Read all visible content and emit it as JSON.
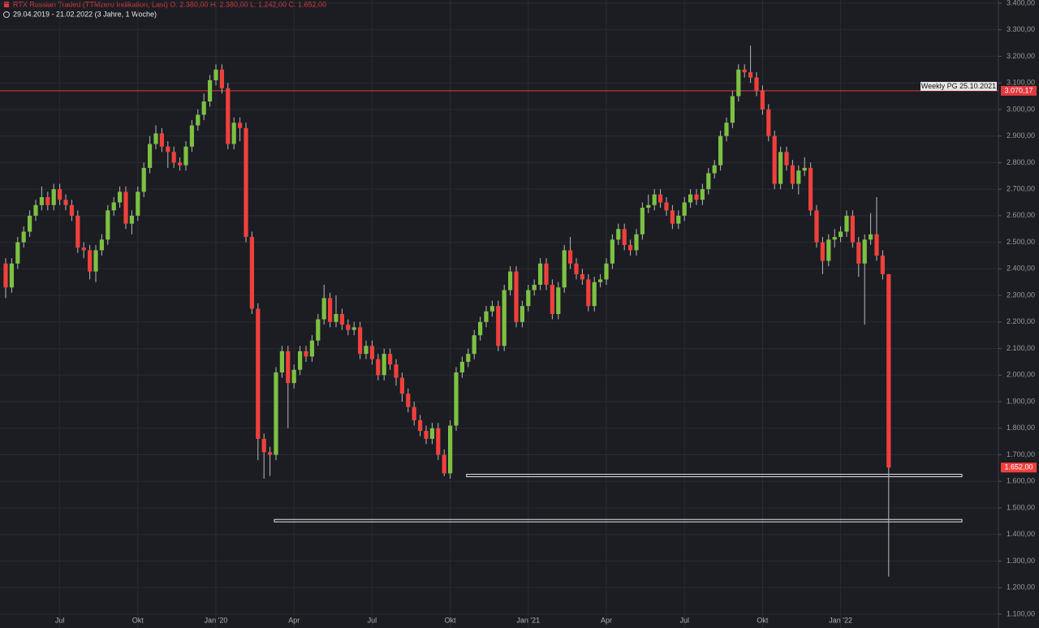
{
  "chart_data": {
    "type": "candlestick",
    "title": "RTX Russian Traded (TTMzero Indikation, Last)  O: 2.380,00  H: 2.380,00  L: 1.242,00  C: 1.652,00",
    "subtitle": "29.04.2019 - 21.02.2022  (3 Jahre, 1 Woche)",
    "categories": [
      null,
      null,
      null,
      null,
      null,
      null,
      null,
      null,
      null,
      "Jul",
      null,
      null,
      null,
      null,
      null,
      null,
      null,
      null,
      null,
      null,
      null,
      null,
      "Okt",
      null,
      null,
      null,
      null,
      null,
      null,
      null,
      null,
      null,
      null,
      null,
      null,
      "Jan '20",
      null,
      null,
      null,
      null,
      null,
      null,
      null,
      null,
      null,
      null,
      null,
      null,
      "Apr",
      null,
      null,
      null,
      null,
      null,
      null,
      null,
      null,
      null,
      null,
      null,
      null,
      "Jul",
      null,
      null,
      null,
      null,
      null,
      null,
      null,
      null,
      null,
      null,
      null,
      null,
      "Okt",
      null,
      null,
      null,
      null,
      null,
      null,
      null,
      null,
      null,
      null,
      null,
      null,
      "Jan '21",
      null,
      null,
      null,
      null,
      null,
      null,
      null,
      null,
      null,
      null,
      null,
      null,
      "Apr",
      null,
      null,
      null,
      null,
      null,
      null,
      null,
      null,
      null,
      null,
      null,
      null,
      "Jul",
      null,
      null,
      null,
      null,
      null,
      null,
      null,
      null,
      null,
      null,
      null,
      null,
      "Okt",
      null,
      null,
      null,
      null,
      null,
      null,
      null,
      null,
      null,
      null,
      null,
      null,
      "Jan '22",
      null,
      null,
      null,
      null,
      null,
      null,
      null,
      null
    ],
    "open": [
      2420,
      2330,
      2420,
      2500,
      2540,
      2600,
      2640,
      2670,
      2640,
      2700,
      2660,
      2640,
      2600,
      2480,
      2470,
      2390,
      2470,
      2510,
      2620,
      2650,
      2690,
      2570,
      2600,
      2690,
      2780,
      2870,
      2910,
      2860,
      2840,
      2800,
      2790,
      2860,
      2940,
      2980,
      3030,
      3110,
      3150,
      3080,
      2870,
      2950,
      2930,
      2520,
      2250,
      1760,
      1710,
      1700,
      2010,
      2090,
      1970,
      2020,
      2090,
      2070,
      2130,
      2210,
      2290,
      2200,
      2230,
      2190,
      2170,
      2180,
      2080,
      2110,
      2060,
      2000,
      2080,
      2040,
      1990,
      1930,
      1880,
      1830,
      1790,
      1760,
      1800,
      1700,
      1630,
      1810,
      2010,
      2050,
      2080,
      2150,
      2200,
      2240,
      2260,
      2110,
      2320,
      2390,
      2200,
      2260,
      2320,
      2340,
      2420,
      2340,
      2230,
      2330,
      2470,
      2420,
      2380,
      2360,
      2260,
      2350,
      2360,
      2420,
      2510,
      2550,
      2490,
      2470,
      2530,
      2630,
      2640,
      2680,
      2650,
      2620,
      2570,
      2600,
      2650,
      2680,
      2660,
      2700,
      2760,
      2790,
      2900,
      2950,
      3050,
      3150,
      3140,
      3120,
      3070,
      3000,
      2900,
      2720,
      2840,
      2790,
      2720,
      2770,
      2780,
      2620,
      2500,
      2430,
      2510,
      2520,
      2540,
      2600,
      2500,
      2420,
      2510,
      2530,
      2450,
      2380
    ],
    "high": [
      2440,
      2440,
      2520,
      2560,
      2620,
      2660,
      2710,
      2690,
      2720,
      2720,
      2680,
      2660,
      2620,
      2500,
      2490,
      2490,
      2530,
      2640,
      2670,
      2710,
      2710,
      2620,
      2710,
      2800,
      2900,
      2940,
      2930,
      2880,
      2860,
      2820,
      2880,
      2960,
      3000,
      3060,
      3130,
      3170,
      3170,
      3100,
      2970,
      2970,
      2950,
      2540,
      2270,
      1780,
      1730,
      2030,
      2110,
      2110,
      2040,
      2110,
      2110,
      2150,
      2230,
      2340,
      2310,
      2300,
      2250,
      2210,
      2200,
      2200,
      2130,
      2130,
      2080,
      2100,
      2100,
      2060,
      2010,
      1950,
      1900,
      1850,
      1810,
      1820,
      1820,
      1720,
      1830,
      2030,
      2070,
      2100,
      2170,
      2220,
      2260,
      2280,
      2280,
      2340,
      2410,
      2410,
      2280,
      2340,
      2360,
      2440,
      2440,
      2360,
      2350,
      2490,
      2520,
      2440,
      2400,
      2380,
      2370,
      2380,
      2440,
      2530,
      2570,
      2570,
      2510,
      2550,
      2650,
      2680,
      2700,
      2700,
      2670,
      2640,
      2620,
      2670,
      2700,
      2700,
      2720,
      2780,
      2810,
      2920,
      2970,
      3070,
      3170,
      3170,
      3240,
      3140,
      3090,
      3020,
      2920,
      2860,
      2860,
      2810,
      2790,
      2820,
      2800,
      2640,
      2520,
      2530,
      2550,
      2560,
      2620,
      2620,
      2520,
      2530,
      2610,
      2670,
      2470,
      2380
    ],
    "low": [
      2290,
      2310,
      2400,
      2480,
      2520,
      2580,
      2620,
      2620,
      2620,
      2640,
      2620,
      2580,
      2460,
      2440,
      2360,
      2350,
      2450,
      2490,
      2600,
      2630,
      2550,
      2530,
      2580,
      2670,
      2760,
      2850,
      2840,
      2780,
      2780,
      2770,
      2770,
      2840,
      2920,
      2960,
      3010,
      3090,
      3060,
      2850,
      2850,
      2880,
      2500,
      2230,
      1680,
      1610,
      1620,
      1680,
      1990,
      1800,
      1950,
      2000,
      2050,
      2050,
      2110,
      2190,
      2180,
      2180,
      2170,
      2150,
      2150,
      2060,
      2060,
      2040,
      1980,
      1980,
      2020,
      1960,
      1900,
      1860,
      1810,
      1770,
      1740,
      1740,
      1680,
      1620,
      1610,
      1790,
      1990,
      2030,
      2060,
      2130,
      2180,
      2220,
      2090,
      2090,
      2300,
      2180,
      2180,
      2240,
      2300,
      2320,
      2320,
      2210,
      2210,
      2310,
      2400,
      2360,
      2340,
      2240,
      2240,
      2330,
      2340,
      2400,
      2490,
      2470,
      2450,
      2450,
      2510,
      2610,
      2620,
      2630,
      2600,
      2550,
      2550,
      2580,
      2630,
      2640,
      2640,
      2680,
      2740,
      2770,
      2880,
      2930,
      3030,
      3120,
      3100,
      3050,
      2980,
      2880,
      2700,
      2700,
      2770,
      2700,
      2680,
      2750,
      2600,
      2480,
      2380,
      2410,
      2480,
      2500,
      2520,
      2480,
      2370,
      2190,
      2490,
      2430,
      2360,
      1242
    ],
    "close": [
      2330,
      2420,
      2500,
      2540,
      2600,
      2640,
      2670,
      2640,
      2700,
      2660,
      2640,
      2600,
      2480,
      2470,
      2390,
      2470,
      2510,
      2620,
      2650,
      2690,
      2570,
      2600,
      2690,
      2780,
      2870,
      2910,
      2860,
      2840,
      2800,
      2790,
      2860,
      2940,
      2980,
      3030,
      3110,
      3150,
      3080,
      2870,
      2950,
      2930,
      2520,
      2250,
      1760,
      1710,
      1700,
      2010,
      2090,
      1970,
      2020,
      2090,
      2070,
      2130,
      2210,
      2290,
      2200,
      2230,
      2190,
      2170,
      2180,
      2080,
      2110,
      2060,
      2000,
      2080,
      2040,
      1990,
      1930,
      1880,
      1830,
      1790,
      1760,
      1800,
      1700,
      1630,
      1810,
      2010,
      2050,
      2080,
      2150,
      2200,
      2240,
      2260,
      2110,
      2320,
      2390,
      2200,
      2260,
      2320,
      2340,
      2420,
      2340,
      2230,
      2330,
      2470,
      2420,
      2380,
      2360,
      2260,
      2350,
      2360,
      2420,
      2510,
      2550,
      2490,
      2470,
      2530,
      2630,
      2640,
      2680,
      2650,
      2620,
      2570,
      2600,
      2650,
      2680,
      2660,
      2700,
      2760,
      2790,
      2900,
      2950,
      3050,
      3150,
      3140,
      3120,
      3070,
      3000,
      2900,
      2720,
      2840,
      2790,
      2720,
      2770,
      2780,
      2620,
      2500,
      2430,
      2510,
      2520,
      2540,
      2600,
      2500,
      2420,
      2510,
      2530,
      2450,
      2380,
      1652
    ],
    "up_color": "#7cc142",
    "down_color": "#f0403c",
    "ylim": [
      1048,
      3412
    ],
    "yticks": [
      {
        "value": 1100,
        "label": "1.100,00"
      },
      {
        "value": 1200,
        "label": "1.200,00"
      },
      {
        "value": 1300,
        "label": "1.300,00"
      },
      {
        "value": 1400,
        "label": "1.400,00"
      },
      {
        "value": 1500,
        "label": "1.500,00"
      },
      {
        "value": 1600,
        "label": "1.600,00"
      },
      {
        "value": 1700,
        "label": "1.700,00"
      },
      {
        "value": 1800,
        "label": "1.800,00"
      },
      {
        "value": 1900,
        "label": "1.900,00"
      },
      {
        "value": 2000,
        "label": "2.000,00"
      },
      {
        "value": 2100,
        "label": "2.100,00"
      },
      {
        "value": 2200,
        "label": "2.200,00"
      },
      {
        "value": 2300,
        "label": "2.300,00"
      },
      {
        "value": 2400,
        "label": "2.400,00"
      },
      {
        "value": 2500,
        "label": "2.500,00"
      },
      {
        "value": 2600,
        "label": "2.600,00"
      },
      {
        "value": 2700,
        "label": "2.700,00"
      },
      {
        "value": 2800,
        "label": "2.800,00"
      },
      {
        "value": 2900,
        "label": "2.900,00"
      },
      {
        "value": 3000,
        "label": "3.000,00"
      },
      {
        "value": 3100,
        "label": "3.100,00"
      },
      {
        "value": 3200,
        "label": "3.200,00"
      },
      {
        "value": 3300,
        "label": "3.300,00"
      },
      {
        "value": 3400,
        "label": "3.400,00"
      }
    ],
    "grid": true,
    "resistance": {
      "name": "Weekly PG 25.10.2021",
      "value": 3070.17,
      "label": "3.070,17",
      "color": "#e0393e"
    },
    "supports": [
      {
        "value": 1622,
        "start": 77
      },
      {
        "value": 1452,
        "start": 45
      }
    ],
    "last_price": {
      "value": 1652,
      "label": "1.652,00"
    }
  }
}
